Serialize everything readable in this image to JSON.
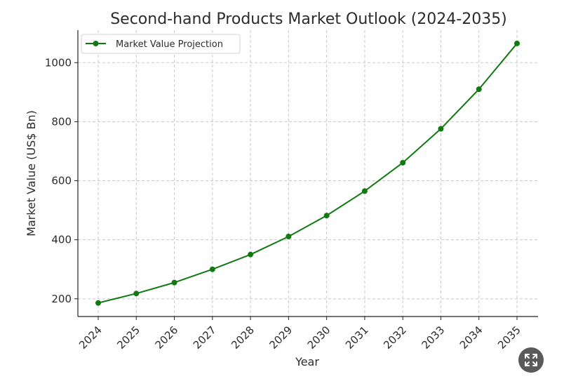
{
  "chart_data": {
    "type": "line",
    "title": "Second-hand Products Market Outlook (2024-2035)",
    "xlabel": "Year",
    "ylabel": "Market Value (US$ Bn)",
    "categories": [
      "2024",
      "2025",
      "2026",
      "2027",
      "2028",
      "2029",
      "2030",
      "2031",
      "2032",
      "2033",
      "2034",
      "2035"
    ],
    "series": [
      {
        "name": "Market Value Projection",
        "color": "#107a10",
        "marker": "circle",
        "values": [
          186,
          218,
          255,
          300,
          350,
          411,
          482,
          565,
          661,
          776,
          910,
          1065
        ]
      }
    ],
    "ylim": [
      140,
      1110
    ],
    "yticks": [
      200,
      400,
      600,
      800,
      1000
    ],
    "grid": true,
    "legend_position": "top-left"
  },
  "controls": {
    "expand_icon": "expand-icon"
  }
}
